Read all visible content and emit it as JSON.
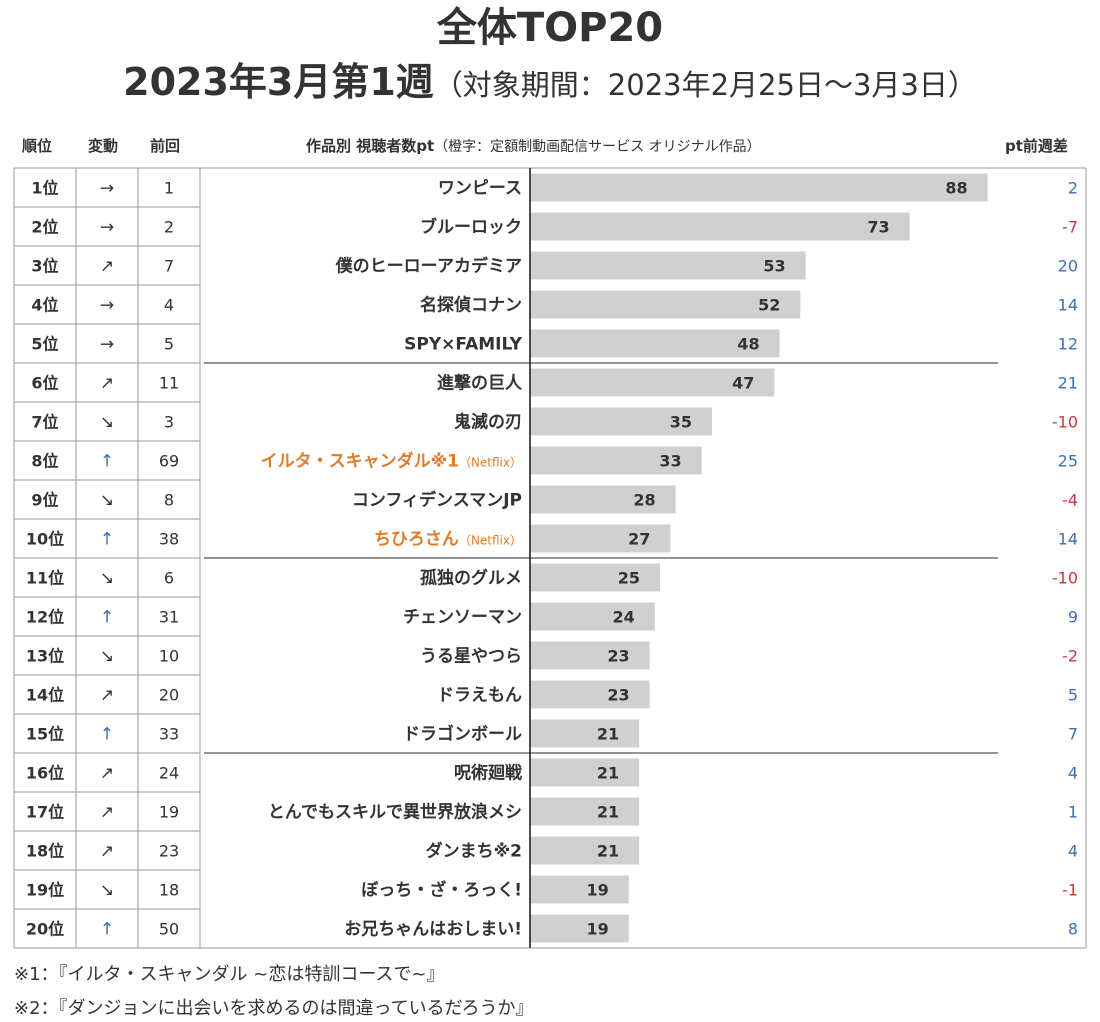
{
  "colors": {
    "bar": "#d0d0d0",
    "text": "#333333",
    "original": "#e07b2a",
    "arrow_up": "#3c6fb4",
    "diff_positive": "#3c6fb4",
    "diff_negative": "#d0343a",
    "border": "#9a9a9a"
  },
  "chart_data": {
    "type": "bar",
    "orientation": "horizontal",
    "title": "全体TOP20",
    "subtitle_main": "2023年3月第1週",
    "subtitle_period": "（対象期間：2023年2月25日～3月3日）",
    "columns": {
      "rank": "順位",
      "change": "変動",
      "prev": "前回",
      "title_main": "作品別 視聴者数pt",
      "title_note": "（橙字：定額制動画配信サービス オリジナル作品）",
      "diff": "pt前週差"
    },
    "xlim": [
      0,
      100
    ],
    "grid": false,
    "legend": "none",
    "rows": [
      {
        "rank": "1位",
        "change": "→",
        "prev": "1",
        "title": "ワンピース",
        "value": 88,
        "diff": "2"
      },
      {
        "rank": "2位",
        "change": "→",
        "prev": "2",
        "title": "ブルーロック",
        "value": 73,
        "diff": "-7"
      },
      {
        "rank": "3位",
        "change": "↗",
        "prev": "7",
        "title": "僕のヒーローアカデミア",
        "value": 53,
        "diff": "20"
      },
      {
        "rank": "4位",
        "change": "→",
        "prev": "4",
        "title": "名探偵コナン",
        "value": 52,
        "diff": "14"
      },
      {
        "rank": "5位",
        "change": "→",
        "prev": "5",
        "title": "SPY×FAMILY",
        "value": 48,
        "diff": "12"
      },
      {
        "rank": "6位",
        "change": "↗",
        "prev": "11",
        "title": "進撃の巨人",
        "value": 47,
        "diff": "21"
      },
      {
        "rank": "7位",
        "change": "↘",
        "prev": "3",
        "title": "鬼滅の刃",
        "value": 35,
        "diff": "-10"
      },
      {
        "rank": "8位",
        "change": "↑",
        "prev": "69",
        "title": "イルタ・スキャンダル※1",
        "service": "（Netflix）",
        "original": true,
        "value": 33,
        "diff": "25"
      },
      {
        "rank": "9位",
        "change": "↘",
        "prev": "8",
        "title": "コンフィデンスマンJP",
        "value": 28,
        "diff": "-4"
      },
      {
        "rank": "10位",
        "change": "↑",
        "prev": "38",
        "title": "ちひろさん",
        "service": "（Netflix）",
        "original": true,
        "value": 27,
        "diff": "14"
      },
      {
        "rank": "11位",
        "change": "↘",
        "prev": "6",
        "title": "孤独のグルメ",
        "value": 25,
        "diff": "-10"
      },
      {
        "rank": "12位",
        "change": "↑",
        "prev": "31",
        "title": "チェンソーマン",
        "value": 24,
        "diff": "9"
      },
      {
        "rank": "13位",
        "change": "↘",
        "prev": "10",
        "title": "うる星やつら",
        "value": 23,
        "diff": "-2"
      },
      {
        "rank": "14位",
        "change": "↗",
        "prev": "20",
        "title": "ドラえもん",
        "value": 23,
        "diff": "5"
      },
      {
        "rank": "15位",
        "change": "↑",
        "prev": "33",
        "title": "ドラゴンボール",
        "value": 21,
        "diff": "7"
      },
      {
        "rank": "16位",
        "change": "↗",
        "prev": "24",
        "title": "呪術廻戦",
        "value": 21,
        "diff": "4"
      },
      {
        "rank": "17位",
        "change": "↗",
        "prev": "19",
        "title": "とんでもスキルで異世界放浪メシ",
        "value": 21,
        "diff": "1"
      },
      {
        "rank": "18位",
        "change": "↗",
        "prev": "23",
        "title": "ダンまち※2",
        "value": 21,
        "diff": "4"
      },
      {
        "rank": "19位",
        "change": "↘",
        "prev": "18",
        "title": "ぼっち・ざ・ろっく!",
        "value": 19,
        "diff": "-1"
      },
      {
        "rank": "20位",
        "change": "↑",
        "prev": "50",
        "title": "お兄ちゃんはおしまい!",
        "value": 19,
        "diff": "8"
      }
    ]
  },
  "footnotes": [
    "※1：『イルタ・スキャンダル ~恋は特訓コースで~』",
    "※2：『ダンジョンに出会いを求めるのは間違っているだろうか』"
  ]
}
